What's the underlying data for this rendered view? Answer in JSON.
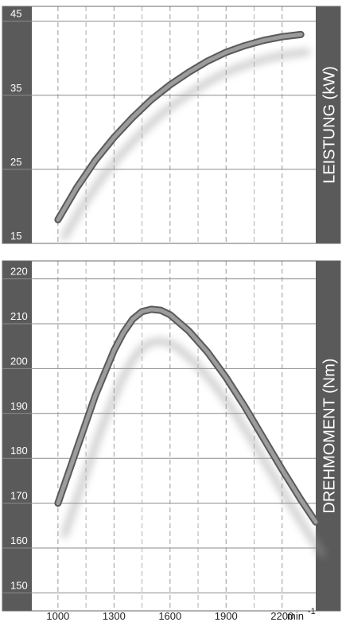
{
  "chart_data": [
    {
      "type": "line",
      "ylabel": "LEISTUNG  (kW)",
      "ylim": [
        15,
        47
      ],
      "y_ticks": [
        15,
        25,
        35,
        45
      ],
      "x_ticks": [
        1000,
        1300,
        1600,
        1900,
        2200
      ],
      "xlim": [
        860,
        2380
      ],
      "grid": true,
      "series": [
        {
          "x": [
            1000,
            1100,
            1200,
            1300,
            1400,
            1500,
            1600,
            1700,
            1800,
            1900,
            2000,
            2100,
            2200,
            2300
          ],
          "values": [
            18.2,
            22.5,
            26.2,
            29.3,
            32.0,
            34.4,
            36.4,
            38.1,
            39.6,
            40.8,
            41.7,
            42.4,
            42.9,
            43.2
          ]
        }
      ]
    },
    {
      "type": "line",
      "ylabel": "DREHMOMENT  (Nm)",
      "ylim": [
        146,
        224
      ],
      "y_ticks": [
        150,
        160,
        170,
        180,
        190,
        200,
        210,
        220
      ],
      "x_ticks": [
        1000,
        1300,
        1600,
        1900,
        2200
      ],
      "x_unit": "min-1",
      "xlim": [
        860,
        2380
      ],
      "grid": true,
      "series": [
        {
          "x": [
            1000,
            1100,
            1200,
            1300,
            1350,
            1400,
            1450,
            1500,
            1550,
            1600,
            1700,
            1800,
            1900,
            2000,
            2100,
            2200,
            2300,
            2380
          ],
          "values": [
            170,
            182,
            194,
            204,
            208,
            211,
            212.7,
            213.2,
            213,
            212,
            208.4,
            203.7,
            198,
            191.5,
            184.5,
            177.5,
            170.8,
            165.8
          ]
        }
      ]
    }
  ]
}
